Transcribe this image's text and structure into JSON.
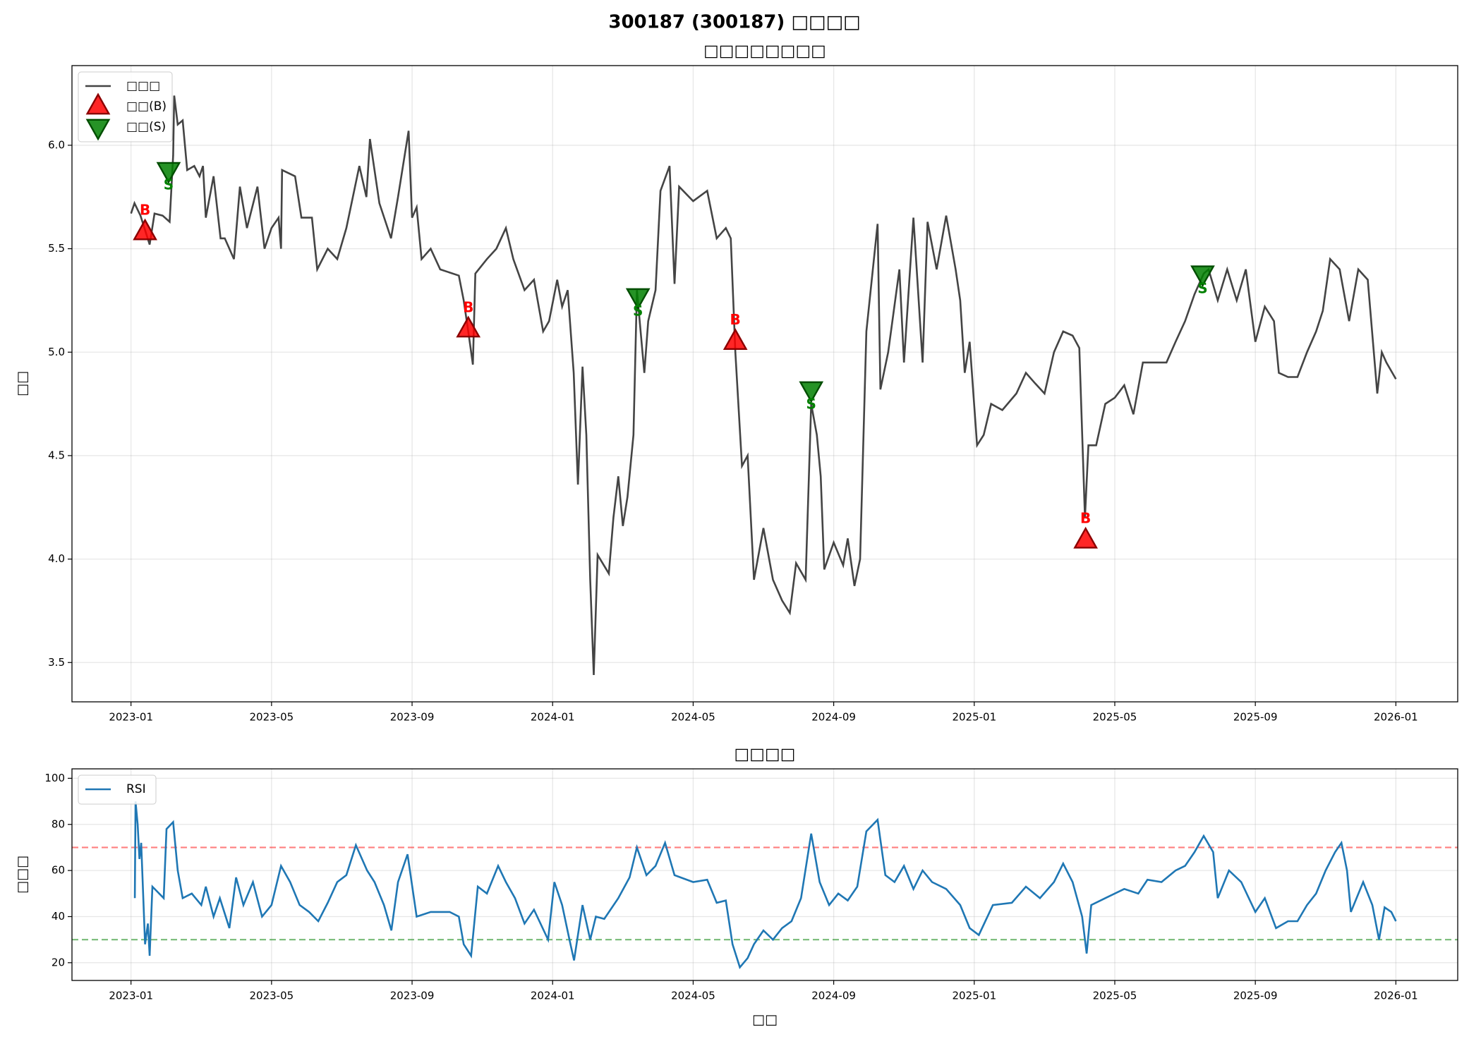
{
  "title": "300187 (300187) □□□□",
  "chart_data": [
    {
      "type": "line",
      "title": "□□□□□□□□",
      "ylabel": "□□",
      "grid": true,
      "legend": "upper left",
      "xlim": [
        -1.68,
        37.76
      ],
      "ylim": [
        3.31,
        6.385
      ],
      "xticks": [
        {
          "value": 0,
          "label": "2023-01"
        },
        {
          "value": 4,
          "label": "2023-05"
        },
        {
          "value": 8,
          "label": "2023-09"
        },
        {
          "value": 12,
          "label": "2024-01"
        },
        {
          "value": 16,
          "label": "2024-05"
        },
        {
          "value": 20,
          "label": "2024-09"
        },
        {
          "value": 24,
          "label": "2025-01"
        },
        {
          "value": 28,
          "label": "2025-05"
        },
        {
          "value": 32,
          "label": "2025-09"
        },
        {
          "value": 36,
          "label": "2026-01"
        }
      ],
      "yticks": [
        3.5,
        {
          "value": 4,
          "label": "4.0"
        },
        4.5,
        {
          "value": 5,
          "label": "5.0"
        },
        5.5,
        {
          "value": 6,
          "label": "6.0"
        }
      ],
      "x": [
        0,
        0.1,
        0.27,
        0.53,
        0.67,
        0.9,
        1.1,
        1.2,
        1.23,
        1.33,
        1.47,
        1.6,
        1.8,
        1.95,
        2.05,
        2.13,
        2.35,
        2.55,
        2.67,
        2.93,
        3.1,
        3.3,
        3.6,
        3.8,
        4.0,
        4.2,
        4.27,
        4.3,
        4.67,
        4.85,
        5.15,
        5.3,
        5.6,
        5.87,
        6.13,
        6.5,
        6.7,
        6.8,
        7.07,
        7.4,
        7.6,
        7.9,
        8.0,
        8.13,
        8.27,
        8.53,
        8.8,
        9.33,
        9.47,
        9.6,
        9.73,
        9.8,
        10.13,
        10.4,
        10.67,
        10.88,
        11.2,
        11.47,
        11.73,
        11.9,
        12.13,
        12.27,
        12.43,
        12.6,
        12.72,
        12.85,
        12.96,
        13.07,
        13.17,
        13.28,
        13.6,
        13.73,
        13.87,
        14.0,
        14.13,
        14.3,
        14.4,
        14.61,
        14.72,
        14.93,
        15.07,
        15.33,
        15.47,
        15.6,
        16.0,
        16.4,
        16.67,
        16.93,
        17.07,
        17.2,
        17.39,
        17.55,
        17.73,
        18.0,
        18.27,
        18.53,
        18.75,
        18.93,
        19.2,
        19.36,
        19.52,
        19.63,
        19.73,
        20.0,
        20.27,
        20.4,
        20.59,
        20.75,
        20.93,
        21.25,
        21.33,
        21.55,
        21.87,
        22.0,
        22.27,
        22.53,
        22.67,
        22.93,
        23.2,
        23.47,
        23.6,
        23.73,
        23.87,
        24.08,
        24.27,
        24.48,
        24.8,
        25.2,
        25.47,
        25.73,
        26.0,
        26.27,
        26.53,
        26.8,
        26.99,
        27.15,
        27.25,
        27.47,
        27.73,
        28.0,
        28.27,
        28.53,
        28.8,
        29.2,
        29.47,
        29.73,
        30.0,
        30.27,
        30.53,
        30.67,
        30.93,
        31.2,
        31.47,
        31.73,
        32.0,
        32.27,
        32.53,
        32.67,
        32.93,
        33.2,
        33.47,
        33.73,
        33.92,
        34.13,
        34.4,
        34.67,
        34.93,
        35.2,
        35.47,
        35.6,
        35.73,
        36.0
      ],
      "series": [
        {
          "name": "□□□",
          "color": "#444444",
          "values": [
            5.67,
            5.72,
            5.66,
            5.52,
            5.67,
            5.66,
            5.63,
            5.95,
            6.24,
            6.1,
            6.12,
            5.88,
            5.9,
            5.85,
            5.9,
            5.65,
            5.85,
            5.55,
            5.55,
            5.45,
            5.8,
            5.6,
            5.8,
            5.5,
            5.6,
            5.65,
            5.5,
            5.88,
            5.85,
            5.65,
            5.65,
            5.4,
            5.5,
            5.45,
            5.6,
            5.9,
            5.75,
            6.03,
            5.72,
            5.55,
            5.75,
            6.07,
            5.65,
            5.7,
            5.45,
            5.5,
            5.4,
            5.37,
            5.25,
            5.1,
            4.94,
            5.38,
            5.45,
            5.5,
            5.6,
            5.45,
            5.3,
            5.35,
            5.1,
            5.15,
            5.35,
            5.22,
            5.3,
            4.9,
            4.36,
            4.93,
            4.6,
            3.9,
            3.44,
            4.02,
            3.93,
            4.2,
            4.4,
            4.16,
            4.3,
            4.6,
            5.3,
            4.9,
            5.15,
            5.3,
            5.78,
            5.9,
            5.33,
            5.8,
            5.73,
            5.78,
            5.55,
            5.6,
            5.55,
            5.0,
            4.45,
            4.5,
            3.9,
            4.15,
            3.9,
            3.8,
            3.74,
            3.98,
            3.9,
            4.75,
            4.6,
            4.4,
            3.95,
            4.08,
            3.97,
            4.1,
            3.87,
            4.0,
            5.1,
            5.62,
            4.82,
            5.0,
            5.4,
            4.95,
            5.65,
            4.95,
            5.63,
            5.4,
            5.66,
            5.4,
            5.25,
            4.9,
            5.05,
            4.55,
            4.6,
            4.75,
            4.72,
            4.8,
            4.9,
            4.85,
            4.8,
            5.0,
            5.1,
            5.08,
            5.02,
            4.2,
            4.55,
            4.55,
            4.75,
            4.78,
            4.84,
            4.7,
            4.95,
            4.95,
            4.95,
            5.05,
            5.15,
            5.28,
            5.38,
            5.4,
            5.25,
            5.4,
            5.25,
            5.4,
            5.05,
            5.22,
            5.15,
            4.9,
            4.88,
            4.88,
            5.0,
            5.1,
            5.2,
            5.45,
            5.4,
            5.15,
            5.4,
            5.35,
            4.8,
            5.0,
            4.95,
            4.87
          ]
        }
      ],
      "buy": {
        "name": "□□(B)",
        "marker_label": "B",
        "color": "#ff0000",
        "x": [
          0.4,
          9.6,
          17.2,
          27.17
        ],
        "values": [
          5.58,
          5.11,
          5.05,
          4.09
        ]
      },
      "sell": {
        "name": "□□(S)",
        "marker_label": "S",
        "color": "#008000",
        "x": [
          1.07,
          14.43,
          19.36,
          30.5
        ],
        "values": [
          5.88,
          5.27,
          4.82,
          5.38
        ]
      }
    },
    {
      "type": "line",
      "title": "□□□□",
      "ylabel": "□□□",
      "xlabel": "□□",
      "grid": true,
      "legend": "upper left",
      "xlim": [
        -1.68,
        37.76
      ],
      "ylim": [
        12.3,
        104.1
      ],
      "xticks": [
        {
          "value": 0,
          "label": "2023-01"
        },
        {
          "value": 4,
          "label": "2023-05"
        },
        {
          "value": 8,
          "label": "2023-09"
        },
        {
          "value": 12,
          "label": "2024-01"
        },
        {
          "value": 16,
          "label": "2024-05"
        },
        {
          "value": 20,
          "label": "2024-09"
        },
        {
          "value": 24,
          "label": "2025-01"
        },
        {
          "value": 28,
          "label": "2025-05"
        },
        {
          "value": 32,
          "label": "2025-09"
        },
        {
          "value": 36,
          "label": "2026-01"
        }
      ],
      "yticks": [
        20,
        40,
        60,
        80,
        100
      ],
      "hlines": [
        {
          "value": 70,
          "color": "#ff0000"
        },
        {
          "value": 30,
          "color": "#008000"
        }
      ],
      "x": [
        0.11,
        0.13,
        0.19,
        0.24,
        0.29,
        0.4,
        0.48,
        0.53,
        0.61,
        0.93,
        1.01,
        1.2,
        1.33,
        1.47,
        1.73,
        2.0,
        2.13,
        2.35,
        2.53,
        2.8,
        2.99,
        3.2,
        3.47,
        3.73,
        4.0,
        4.27,
        4.53,
        4.8,
        5.07,
        5.33,
        5.6,
        5.87,
        6.13,
        6.4,
        6.72,
        6.93,
        7.2,
        7.41,
        7.6,
        7.87,
        8.13,
        8.53,
        9.07,
        9.33,
        9.47,
        9.68,
        9.87,
        10.13,
        10.45,
        10.67,
        10.93,
        11.2,
        11.47,
        11.87,
        12.05,
        12.27,
        12.48,
        12.61,
        12.85,
        13.07,
        13.23,
        13.47,
        13.87,
        14.19,
        14.4,
        14.67,
        14.93,
        15.2,
        15.47,
        16.0,
        16.4,
        16.67,
        16.93,
        17.12,
        17.33,
        17.55,
        17.73,
        18.0,
        18.27,
        18.53,
        18.8,
        19.07,
        19.36,
        19.6,
        19.87,
        20.13,
        20.4,
        20.67,
        20.93,
        21.25,
        21.47,
        21.73,
        22.0,
        22.27,
        22.53,
        22.8,
        23.2,
        23.6,
        23.87,
        24.13,
        24.53,
        25.07,
        25.47,
        25.87,
        26.27,
        26.53,
        26.8,
        27.07,
        27.2,
        27.33,
        27.73,
        28.27,
        28.67,
        28.93,
        29.33,
        29.73,
        30.0,
        30.27,
        30.53,
        30.8,
        30.93,
        31.25,
        31.6,
        32.0,
        32.27,
        32.59,
        32.93,
        33.2,
        33.47,
        33.73,
        34.0,
        34.27,
        34.45,
        34.61,
        34.72,
        35.07,
        35.33,
        35.52,
        35.68,
        35.87,
        36.0
      ],
      "series": [
        {
          "name": "RSI",
          "color": "#1f77b4",
          "values": [
            48,
            90,
            80,
            65,
            72,
            28,
            37,
            23,
            53,
            48,
            78,
            81,
            60,
            48,
            50,
            45,
            53,
            40,
            48,
            35,
            57,
            45,
            55,
            40,
            45,
            62,
            55,
            45,
            42,
            38,
            46,
            55,
            58,
            71,
            60,
            55,
            45,
            34,
            55,
            67,
            40,
            42,
            42,
            40,
            28,
            23,
            53,
            50,
            62,
            55,
            48,
            37,
            43,
            30,
            55,
            45,
            30,
            21,
            45,
            30,
            40,
            39,
            48,
            57,
            70,
            58,
            62,
            72,
            58,
            55,
            56,
            46,
            47,
            28,
            18,
            22,
            28,
            34,
            30,
            35,
            38,
            48,
            76,
            55,
            45,
            50,
            47,
            53,
            77,
            82,
            58,
            55,
            62,
            52,
            60,
            55,
            52,
            45,
            35,
            32,
            45,
            46,
            53,
            48,
            55,
            63,
            55,
            40,
            24,
            45,
            48,
            52,
            50,
            56,
            55,
            60,
            62,
            68,
            75,
            68,
            48,
            60,
            55,
            42,
            48,
            35,
            38,
            38,
            45,
            50,
            60,
            68,
            72,
            60,
            42,
            55,
            45,
            30,
            44,
            42,
            38
          ]
        }
      ]
    }
  ]
}
